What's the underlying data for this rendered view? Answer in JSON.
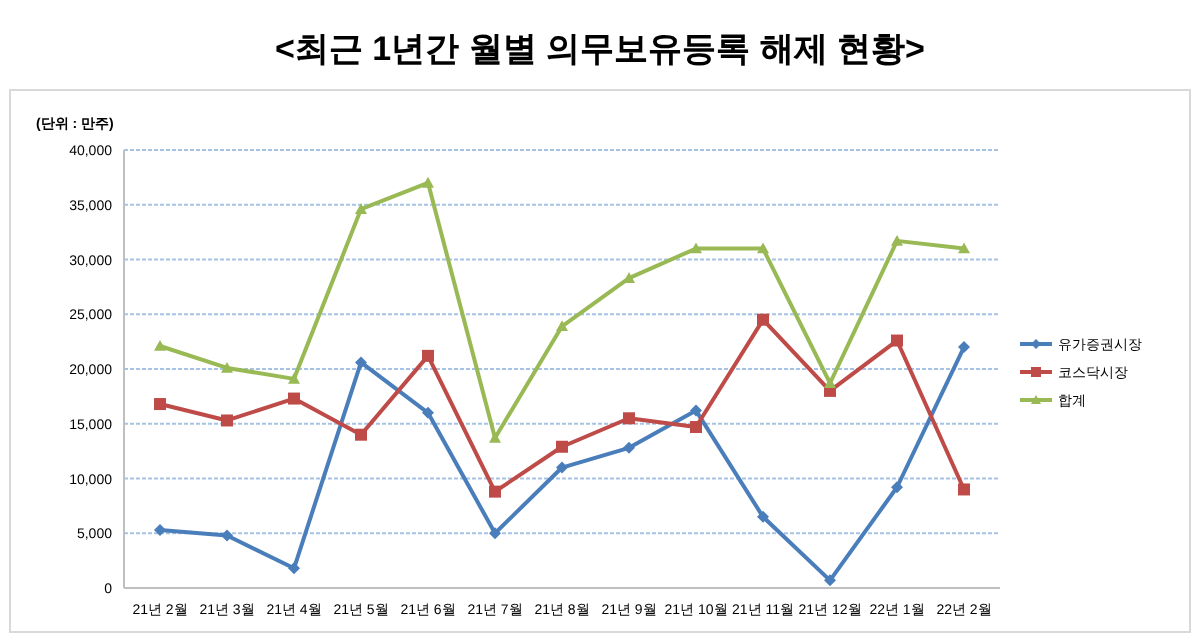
{
  "chart_data": {
    "type": "line",
    "title": "<최근 1년간 월별 의무보유등록 해제 현황>",
    "annotations": [
      "(단위 : 만주)"
    ],
    "categories": [
      "21년 2월",
      "21년 3월",
      "21년 4월",
      "21년 5월",
      "21년 6월",
      "21년 7월",
      "21년 8월",
      "21년 9월",
      "21년 10월",
      "21년 11월",
      "21년 12월",
      "22년 1월",
      "22년 2월"
    ],
    "series": [
      {
        "name": "유가증권시장",
        "color": "#4a7ebb",
        "marker": "diamond",
        "values": [
          5300,
          4800,
          1800,
          20600,
          16000,
          5000,
          11000,
          12800,
          16200,
          6500,
          700,
          9200,
          22000
        ]
      },
      {
        "name": "코스닥시장",
        "color": "#be4b48",
        "marker": "square",
        "values": [
          16800,
          15300,
          17300,
          14000,
          21200,
          8800,
          12900,
          15500,
          14700,
          24500,
          18000,
          22600,
          9000
        ]
      },
      {
        "name": "합계",
        "color": "#98b954",
        "marker": "triangle",
        "values": [
          22100,
          20100,
          19100,
          34600,
          37000,
          13700,
          23900,
          28300,
          31000,
          31000,
          18700,
          31700,
          31000
        ]
      }
    ],
    "ylim": [
      0,
      40000
    ],
    "yticks": [
      0,
      {
        "value": 5000,
        "label": "5,000"
      },
      {
        "value": 10000,
        "label": "10,000"
      },
      {
        "value": 15000,
        "label": "15,000"
      },
      {
        "value": 20000,
        "label": "20,000"
      },
      {
        "value": 25000,
        "label": "25,000"
      },
      {
        "value": 30000,
        "label": "30,000"
      },
      {
        "value": 35000,
        "label": "35,000"
      },
      {
        "value": 40000,
        "label": "40,000"
      }
    ],
    "grid": "y",
    "legend": "right",
    "line_style": "solid"
  }
}
